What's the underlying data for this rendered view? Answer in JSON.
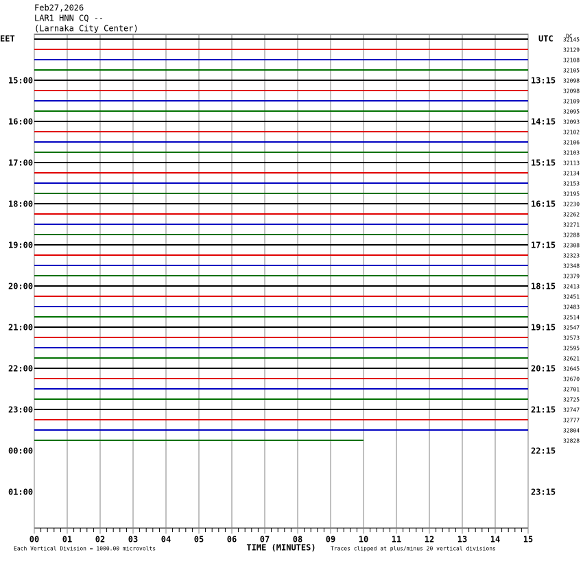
{
  "header": [
    "Feb27,2026",
    "LAR1 HNN CQ --",
    "(Larnaka City Center)"
  ],
  "left_title": "EET",
  "right_title": "UTC",
  "count_title": "DC",
  "left_labels": [
    "15:00",
    "16:00",
    "17:00",
    "18:00",
    "19:00",
    "20:00",
    "21:00",
    "22:00",
    "23:00",
    "00:00",
    "01:00"
  ],
  "right_labels": [
    "13:15",
    "14:15",
    "15:15",
    "16:15",
    "17:15",
    "18:15",
    "19:15",
    "20:15",
    "21:15",
    "22:15",
    "23:15"
  ],
  "counts": [
    32145,
    32129,
    32108,
    32105,
    32098,
    32098,
    32109,
    32095,
    32093,
    32102,
    32106,
    32103,
    32113,
    32134,
    32153,
    32195,
    32230,
    32262,
    32271,
    32288,
    32308,
    32323,
    32348,
    32379,
    32413,
    32451,
    32483,
    32514,
    32547,
    32573,
    32595,
    32621,
    32645,
    32670,
    32701,
    32725,
    32747,
    32777,
    32804,
    32828
  ],
  "trace_colors": [
    "#000000",
    "#e00000",
    "#0000c0",
    "#007000"
  ],
  "last_trace_end_minute": 10,
  "xlim": [
    0,
    15
  ],
  "xticks": [
    {
      "value": 0,
      "label": "00"
    },
    {
      "value": 1,
      "label": "01"
    },
    {
      "value": 2,
      "label": "02"
    },
    {
      "value": 3,
      "label": "03"
    },
    {
      "value": 4,
      "label": "04"
    },
    {
      "value": 5,
      "label": "05"
    },
    {
      "value": 6,
      "label": "06"
    },
    {
      "value": 7,
      "label": "07"
    },
    {
      "value": 8,
      "label": "08"
    },
    {
      "value": 9,
      "label": "09"
    },
    {
      "value": 10,
      "label": "10"
    },
    {
      "value": 11,
      "label": "11"
    },
    {
      "value": 12,
      "label": "12"
    },
    {
      "value": 13,
      "label": "13"
    },
    {
      "value": 14,
      "label": "14"
    },
    15
  ],
  "x_label": "TIME (MINUTES)",
  "footer_left": "Each Vertical Division = 1000.00 microvolts",
  "footer_right": "Traces clipped at plus/minus 20 vertical divisions"
}
